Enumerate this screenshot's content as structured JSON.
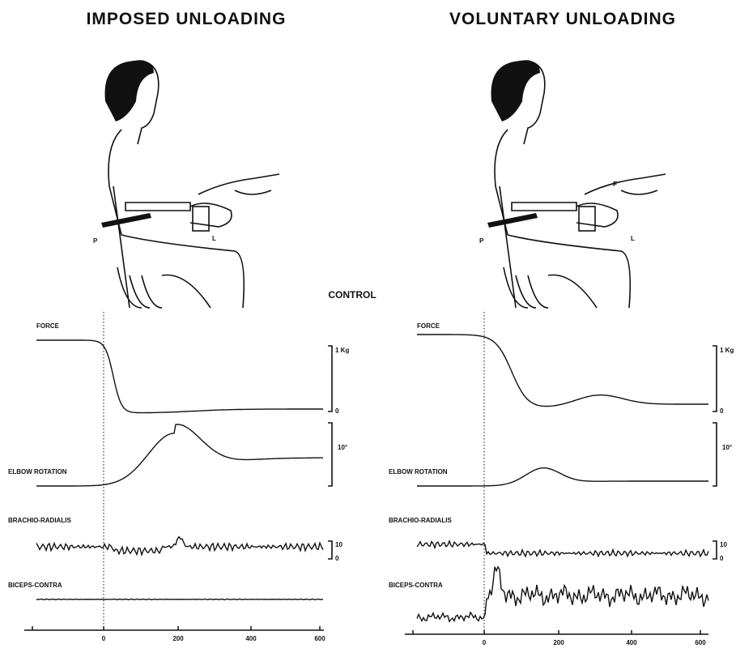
{
  "titles": {
    "left": "IMPOSED UNLOADING",
    "right": "VOLUNTARY UNLOADING"
  },
  "condition": "CONTROL",
  "panels": [
    {
      "figure_labels": [
        "P",
        "L"
      ],
      "traces": [
        "FORCE",
        "ELBOW ROTATION",
        "BRACHIO-RADIALIS",
        "BICEPS-CONTRA"
      ],
      "scales": {
        "force_top": "1 Kg",
        "force_bottom": "0",
        "rotation": "10°",
        "emg_top": "10",
        "emg_bottom": "0"
      },
      "x_ticks": [
        "0",
        "200",
        "400",
        "600"
      ]
    },
    {
      "figure_labels": [
        "P",
        "L",
        "F"
      ],
      "traces": [
        "FORCE",
        "ELBOW ROTATION",
        "BRACHIO-RADIALIS",
        "BICEPS-CONTRA"
      ],
      "scales": {
        "force_top": "1 Kg",
        "force_bottom": "0",
        "rotation": "10°",
        "emg_top": "10",
        "emg_bottom": "0"
      },
      "x_ticks": [
        "0",
        "200",
        "400",
        "600"
      ]
    }
  ]
}
